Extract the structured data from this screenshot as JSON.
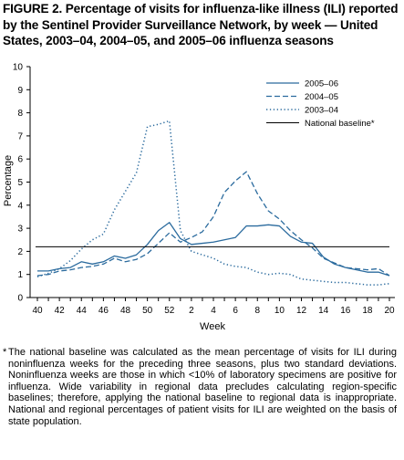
{
  "figure": {
    "title": "FIGURE 2. Percentage of visits for influenza-like illness (ILI) reported by the Sentinel Provider Surveillance Network, by week — United States, 2003–04, 2004–05, and 2005–06 influenza seasons"
  },
  "chart_data": {
    "type": "line",
    "xlabel": "Week",
    "ylabel": "Percentage",
    "ylim": [
      0,
      10
    ],
    "yticks": [
      0,
      1,
      2,
      3,
      4,
      5,
      6,
      7,
      8,
      9,
      10
    ],
    "x_tick_labels": [
      "40",
      "42",
      "44",
      "46",
      "48",
      "50",
      "52",
      "2",
      "4",
      "6",
      "8",
      "10",
      "12",
      "14",
      "16",
      "18",
      "20"
    ],
    "weeks": [
      "40",
      "41",
      "42",
      "43",
      "44",
      "45",
      "46",
      "47",
      "48",
      "49",
      "50",
      "51",
      "52",
      "1",
      "2",
      "3",
      "4",
      "5",
      "6",
      "7",
      "8",
      "9",
      "10",
      "11",
      "12",
      "13",
      "14",
      "15",
      "16",
      "17",
      "18",
      "19",
      "20"
    ],
    "legend_position": "top-right",
    "grid": false,
    "series": [
      {
        "name": "2005–06",
        "style": "solid",
        "values": [
          1.15,
          1.15,
          1.25,
          1.3,
          1.55,
          1.45,
          1.55,
          1.8,
          1.7,
          1.85,
          2.3,
          2.9,
          3.25,
          2.55,
          2.3,
          2.35,
          2.4,
          2.5,
          2.6,
          3.1,
          3.1,
          3.15,
          3.1,
          2.65,
          2.4,
          2.35,
          1.75,
          1.45,
          1.3,
          1.2,
          1.1,
          1.1,
          0.95
        ]
      },
      {
        "name": "2004–05",
        "style": "dashed",
        "values": [
          0.95,
          1.0,
          1.15,
          1.2,
          1.3,
          1.35,
          1.45,
          1.7,
          1.55,
          1.65,
          1.9,
          2.35,
          2.8,
          2.4,
          2.6,
          2.85,
          3.5,
          4.55,
          5.05,
          5.45,
          4.5,
          3.75,
          3.4,
          2.9,
          2.5,
          2.15,
          1.7,
          1.5,
          1.3,
          1.25,
          1.2,
          1.25,
          0.95
        ]
      },
      {
        "name": "2003–04",
        "style": "dotted",
        "values": [
          0.9,
          1.05,
          1.25,
          1.6,
          2.1,
          2.5,
          2.75,
          3.8,
          4.6,
          5.4,
          7.4,
          7.5,
          7.65,
          2.9,
          2.0,
          1.85,
          1.7,
          1.45,
          1.35,
          1.3,
          1.1,
          1.0,
          1.05,
          1.0,
          0.8,
          0.75,
          0.7,
          0.65,
          0.65,
          0.6,
          0.55,
          0.55,
          0.6
        ]
      },
      {
        "name": "National baseline*",
        "style": "solid-black",
        "values": [
          2.2
        ]
      }
    ]
  },
  "colors": {
    "series_blue": "#2b6b9e",
    "baseline": "#000000",
    "axis": "#000000"
  },
  "footnote": {
    "mark": "*",
    "text": "The national baseline was calculated as the mean percentage of visits for ILI during noninfluenza weeks for the preceding three seasons, plus two standard deviations. Noninfluenza weeks are those in which <10% of laboratory specimens are positive for influenza. Wide variability in regional data precludes calculating region-specific baselines; therefore, applying the national baseline to regional data is inappropriate. National and regional percentages of patient visits for ILI are weighted on the basis of state population."
  }
}
